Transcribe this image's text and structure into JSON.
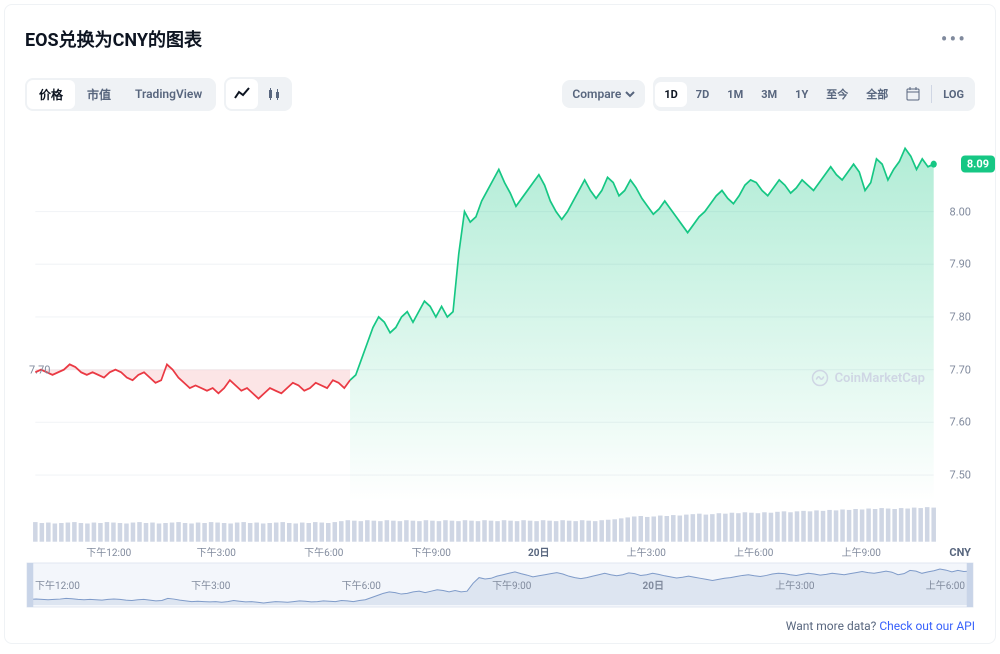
{
  "header": {
    "title": "EOS兑换为CNY的图表"
  },
  "toolbar": {
    "tabs": {
      "price": "价格",
      "mcap": "市值",
      "tv": "TradingView"
    },
    "compare": "Compare",
    "ranges": [
      "1D",
      "7D",
      "1M",
      "3M",
      "1Y",
      "至今",
      "全部"
    ],
    "active_range": "1D",
    "log": "LOG"
  },
  "chart": {
    "type": "line-area",
    "start_price_label": "7.70",
    "current_price": "8.09",
    "y_ticks": [
      7.5,
      7.6,
      7.7,
      7.8,
      7.9,
      8.0
    ],
    "ylim": [
      7.45,
      8.15
    ],
    "x_ticks": [
      "下午12:00",
      "下午3:00",
      "下午6:00",
      "下午9:00",
      "20日",
      "上午3:00",
      "上午6:00",
      "上午9:00"
    ],
    "currency_label": "CNY",
    "watermark": "CoinMarketCap",
    "grid_color": "#f2f4f7",
    "line_green": "#16c784",
    "line_red": "#ea3943",
    "area_green_top": "#16c78455",
    "area_green_bottom": "#16c78400",
    "area_red": "#ea394322",
    "volume_bar_color": "#cfd6e4",
    "brush_fill": "#b0c4de55",
    "brush_stroke": "#7f9bc9",
    "red_series": [
      7.695,
      7.7,
      7.695,
      7.69,
      7.695,
      7.7,
      7.71,
      7.705,
      7.695,
      7.69,
      7.695,
      7.69,
      7.685,
      7.695,
      7.7,
      7.695,
      7.685,
      7.68,
      7.69,
      7.695,
      7.685,
      7.675,
      7.68,
      7.71,
      7.7,
      7.685,
      7.675,
      7.665,
      7.67,
      7.665,
      7.66,
      7.665,
      7.655,
      7.665,
      7.68,
      7.67,
      7.66,
      7.665,
      7.655,
      7.645,
      7.655,
      7.665,
      7.66,
      7.655,
      7.665,
      7.675,
      7.67,
      7.66,
      7.665,
      7.675,
      7.67,
      7.665,
      7.68,
      7.675,
      7.665,
      7.68
    ],
    "green_series": [
      7.68,
      7.69,
      7.72,
      7.75,
      7.78,
      7.8,
      7.79,
      7.77,
      7.78,
      7.8,
      7.81,
      7.79,
      7.81,
      7.83,
      7.82,
      7.8,
      7.82,
      7.8,
      7.81,
      7.92,
      8.0,
      7.98,
      7.99,
      8.02,
      8.04,
      8.06,
      8.08,
      8.055,
      8.035,
      8.01,
      8.025,
      8.04,
      8.055,
      8.07,
      8.05,
      8.02,
      8.0,
      7.985,
      8.0,
      8.02,
      8.04,
      8.06,
      8.04,
      8.025,
      8.04,
      8.065,
      8.055,
      8.03,
      8.04,
      8.06,
      8.045,
      8.025,
      8.01,
      7.995,
      8.005,
      8.02,
      8.005,
      7.99,
      7.975,
      7.96,
      7.975,
      7.99,
      8.0,
      8.015,
      8.03,
      8.04,
      8.025,
      8.015,
      8.03,
      8.05,
      8.06,
      8.055,
      8.04,
      8.03,
      8.045,
      8.06,
      8.05,
      8.035,
      8.045,
      8.06,
      8.05,
      8.04,
      8.055,
      8.07,
      8.085,
      8.07,
      8.06,
      8.075,
      8.09,
      8.075,
      8.04,
      8.055,
      8.1,
      8.09,
      8.06,
      8.08,
      8.095,
      8.12,
      8.105,
      8.08,
      8.1,
      8.085,
      8.09
    ],
    "volume": [
      0.42,
      0.4,
      0.41,
      0.39,
      0.4,
      0.41,
      0.42,
      0.4,
      0.39,
      0.41,
      0.4,
      0.42,
      0.41,
      0.4,
      0.39,
      0.41,
      0.42,
      0.4,
      0.41,
      0.39,
      0.4,
      0.41,
      0.42,
      0.4,
      0.39,
      0.41,
      0.4,
      0.42,
      0.41,
      0.4,
      0.39,
      0.41,
      0.42,
      0.4,
      0.41,
      0.39,
      0.4,
      0.41,
      0.42,
      0.4,
      0.39,
      0.41,
      0.4,
      0.42,
      0.41,
      0.4,
      0.42,
      0.44,
      0.46,
      0.45,
      0.44,
      0.46,
      0.45,
      0.44,
      0.46,
      0.45,
      0.44,
      0.46,
      0.45,
      0.44,
      0.46,
      0.45,
      0.44,
      0.46,
      0.45,
      0.44,
      0.46,
      0.45,
      0.44,
      0.46,
      0.45,
      0.44,
      0.46,
      0.45,
      0.44,
      0.46,
      0.45,
      0.44,
      0.46,
      0.45,
      0.44,
      0.46,
      0.45,
      0.44,
      0.46,
      0.45,
      0.44,
      0.46,
      0.47,
      0.48,
      0.5,
      0.52,
      0.54,
      0.55,
      0.53,
      0.54,
      0.56,
      0.55,
      0.57,
      0.56,
      0.58,
      0.59,
      0.6,
      0.58,
      0.59,
      0.61,
      0.6,
      0.62,
      0.61,
      0.63,
      0.62,
      0.61,
      0.63,
      0.62,
      0.64,
      0.65,
      0.63,
      0.65,
      0.66,
      0.65,
      0.67,
      0.66,
      0.68,
      0.67,
      0.69,
      0.68,
      0.7,
      0.69,
      0.71,
      0.7,
      0.72,
      0.71,
      0.7,
      0.72,
      0.71,
      0.73,
      0.72,
      0.74,
      0.73
    ]
  },
  "footer": {
    "text": "Want more data? ",
    "link_text": "Check out our API"
  }
}
